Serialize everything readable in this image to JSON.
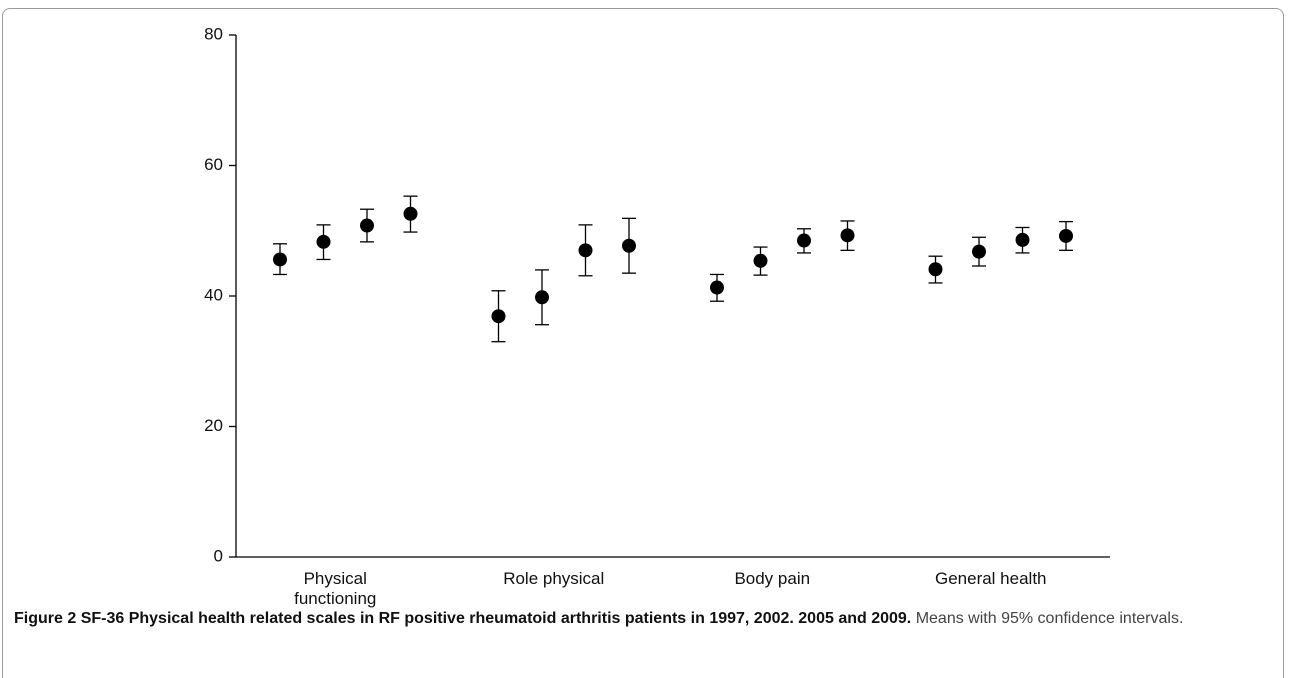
{
  "chart_data": {
    "type": "errorbar",
    "categories": [
      "Physical functioning",
      "Role physical",
      "Body pain",
      "General health"
    ],
    "series": [
      {
        "color": "#000000",
        "values": [
          45.6,
          36.9,
          41.3,
          44.1
        ],
        "lower": [
          43.3,
          33.0,
          39.2,
          42.0
        ],
        "upper": [
          48.0,
          40.8,
          43.3,
          46.1
        ]
      },
      {
        "color": "#000000",
        "values": [
          48.3,
          39.8,
          45.4,
          46.8
        ],
        "lower": [
          45.6,
          35.6,
          43.2,
          44.6
        ],
        "upper": [
          50.9,
          44.0,
          47.5,
          49.0
        ]
      },
      {
        "color": "#000000",
        "values": [
          50.8,
          47.0,
          48.5,
          48.6
        ],
        "lower": [
          48.3,
          43.1,
          46.6,
          46.6
        ],
        "upper": [
          53.3,
          50.9,
          50.3,
          50.5
        ]
      },
      {
        "color": "#000000",
        "values": [
          52.6,
          47.7,
          49.3,
          49.2
        ],
        "lower": [
          49.8,
          43.5,
          47.0,
          47.0
        ],
        "upper": [
          55.3,
          51.9,
          51.5,
          51.4
        ]
      }
    ],
    "ylim": [
      0,
      80
    ],
    "yticks": [
      0,
      20,
      40,
      60,
      80
    ],
    "grid": false
  },
  "caption": {
    "label": "Figure 2",
    "title": "SF-36 Physical health related scales in RF positive rheumatoid arthritis patients in 1997, 2002. 2005 and 2009.",
    "text": "Means with 95% confidence intervals."
  }
}
